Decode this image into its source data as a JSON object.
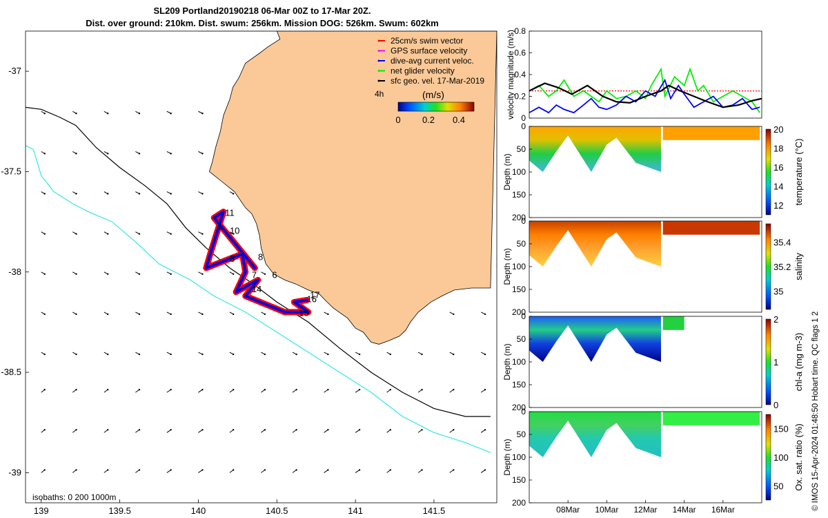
{
  "title": {
    "line1": "SL209 Portland20190218 06-Mar 00Z to 17-Mar 20Z.",
    "line2": "Dist. over ground: 210km. Dist. swum: 256km. Mission DOG: 526km. Swum: 602km"
  },
  "credit": "© IMOS 15-Apr-2024 01:48:50 Hobart time. QC flags 1  2",
  "colors": {
    "land": "#fbc997",
    "isobath200": "#000000",
    "isobath1000": "#33e6e6",
    "swim": "#ff0000",
    "gps": "#ff00ff",
    "diveavg": "#0000ff",
    "net": "#00ff00",
    "geo": "#000000"
  },
  "chart_data": [
    {
      "type": "scatter",
      "name": "map",
      "xlim": [
        138.9,
        141.9
      ],
      "ylim": [
        -39.15,
        -36.8
      ],
      "x_ticks": [
        "139",
        "139.5",
        "140",
        "140.5",
        "141",
        "141.5"
      ],
      "y_ticks": [
        "-37",
        "-37.5",
        "-38",
        "-38.5",
        "-39"
      ],
      "x_tick_values": [
        139,
        139.5,
        140,
        140.5,
        141,
        141.5
      ],
      "y_tick_values": [
        -37,
        -37.5,
        -38,
        -38.5,
        -39
      ],
      "legend": {
        "items": [
          "25cm/s swim vector",
          "GPS surface velocity",
          "dive-avg current veloc.",
          "net glider velocity",
          "sfc geo. vel. 17-Mar-2019"
        ],
        "interval": "4h",
        "cbar_label": "(m/s)",
        "cbar_ticks": [
          "0",
          "0.2",
          "0.4"
        ],
        "cbar_range": [
          0,
          0.5
        ]
      },
      "isobath_label": "isobaths: 0   200  1000m",
      "waypoint_labels": [
        {
          "text": "11",
          "lon": 140.17,
          "lat": -37.72
        },
        {
          "text": "10",
          "lon": 140.2,
          "lat": -37.81
        },
        {
          "text": "1",
          "lon": 140.12,
          "lat": -37.79
        },
        {
          "text": "8",
          "lon": 140.38,
          "lat": -37.94
        },
        {
          "text": "3",
          "lon": 140.2,
          "lat": -37.95
        },
        {
          "text": "7",
          "lon": 140.34,
          "lat": -38.03
        },
        {
          "text": "6",
          "lon": 140.47,
          "lat": -38.03
        },
        {
          "text": "14",
          "lon": 140.34,
          "lat": -38.1
        },
        {
          "text": "17",
          "lon": 140.71,
          "lat": -38.13
        },
        {
          "text": "16",
          "lon": 140.69,
          "lat": -38.15
        },
        {
          "text": "15",
          "lon": 140.64,
          "lat": -38.22
        }
      ],
      "coastline": [
        [
          140.0,
          -36.8
        ],
        [
          140.5,
          -36.8
        ],
        [
          140.52,
          -36.84
        ],
        [
          140.44,
          -36.88
        ],
        [
          140.39,
          -36.91
        ],
        [
          140.3,
          -36.96
        ],
        [
          140.26,
          -37.03
        ],
        [
          140.22,
          -37.08
        ],
        [
          140.2,
          -37.14
        ],
        [
          140.16,
          -37.22
        ],
        [
          140.14,
          -37.3
        ],
        [
          140.11,
          -37.38
        ],
        [
          140.09,
          -37.45
        ],
        [
          140.07,
          -37.5
        ],
        [
          140.15,
          -37.55
        ],
        [
          140.23,
          -37.6
        ],
        [
          140.3,
          -37.68
        ],
        [
          140.34,
          -37.71
        ],
        [
          140.37,
          -37.76
        ],
        [
          140.39,
          -37.82
        ],
        [
          140.4,
          -37.88
        ],
        [
          140.43,
          -37.96
        ],
        [
          140.48,
          -38.01
        ],
        [
          140.55,
          -38.04
        ],
        [
          140.62,
          -38.06
        ],
        [
          140.7,
          -38.09
        ],
        [
          140.77,
          -38.11
        ],
        [
          140.82,
          -38.15
        ],
        [
          140.86,
          -38.18
        ],
        [
          140.95,
          -38.23
        ],
        [
          141.0,
          -38.28
        ],
        [
          141.05,
          -38.3
        ],
        [
          141.1,
          -38.35
        ],
        [
          141.15,
          -38.36
        ],
        [
          141.22,
          -38.34
        ],
        [
          141.28,
          -38.32
        ],
        [
          141.32,
          -38.29
        ],
        [
          141.35,
          -38.25
        ],
        [
          141.4,
          -38.2
        ],
        [
          141.48,
          -38.15
        ],
        [
          141.55,
          -38.12
        ],
        [
          141.63,
          -38.09
        ],
        [
          141.74,
          -38.08
        ],
        [
          141.86,
          -38.08
        ]
      ],
      "isobath_200": [
        [
          138.9,
          -37.18
        ],
        [
          139.0,
          -37.19
        ],
        [
          139.12,
          -37.23
        ],
        [
          139.22,
          -37.27
        ],
        [
          139.35,
          -37.38
        ],
        [
          139.5,
          -37.48
        ],
        [
          139.66,
          -37.57
        ],
        [
          139.8,
          -37.66
        ],
        [
          139.92,
          -37.78
        ],
        [
          140.05,
          -37.88
        ],
        [
          140.2,
          -37.98
        ],
        [
          140.35,
          -38.06
        ],
        [
          140.5,
          -38.15
        ],
        [
          140.7,
          -38.25
        ],
        [
          140.9,
          -38.38
        ],
        [
          141.1,
          -38.5
        ],
        [
          141.3,
          -38.6
        ],
        [
          141.5,
          -38.68
        ],
        [
          141.7,
          -38.72
        ],
        [
          141.86,
          -38.72
        ]
      ],
      "isobath_1000": [
        [
          138.9,
          -37.37
        ],
        [
          138.95,
          -37.39
        ],
        [
          139.0,
          -37.52
        ],
        [
          139.08,
          -37.6
        ],
        [
          139.2,
          -37.66
        ],
        [
          139.3,
          -37.7
        ],
        [
          139.45,
          -37.75
        ],
        [
          139.6,
          -37.85
        ],
        [
          139.75,
          -37.96
        ],
        [
          139.95,
          -38.04
        ],
        [
          140.1,
          -38.12
        ],
        [
          140.3,
          -38.2
        ],
        [
          140.5,
          -38.3
        ],
        [
          140.7,
          -38.4
        ],
        [
          140.9,
          -38.5
        ],
        [
          141.1,
          -38.6
        ],
        [
          141.3,
          -38.72
        ],
        [
          141.5,
          -38.8
        ],
        [
          141.7,
          -38.85
        ],
        [
          141.86,
          -38.9
        ]
      ],
      "track": [
        [
          140.36,
          -37.98
        ],
        [
          140.1,
          -37.73
        ],
        [
          140.16,
          -37.7
        ],
        [
          140.08,
          -37.9
        ],
        [
          140.05,
          -37.98
        ],
        [
          140.28,
          -37.91
        ],
        [
          140.3,
          -38.0
        ],
        [
          140.24,
          -38.1
        ],
        [
          140.38,
          -38.04
        ],
        [
          140.3,
          -38.12
        ],
        [
          140.55,
          -38.2
        ],
        [
          140.7,
          -38.2
        ],
        [
          140.61,
          -38.15
        ],
        [
          140.69,
          -38.14
        ]
      ]
    },
    {
      "type": "line",
      "name": "velocity",
      "ylabel": "velocity magnitude (m/s)",
      "ylim": [
        0,
        0.8
      ],
      "y_ticks": [
        "0",
        "0.2",
        "0.4",
        "0.6",
        "0.8"
      ],
      "y_tick_values": [
        0,
        0.2,
        0.4,
        0.6,
        0.8
      ],
      "xlim": [
        6.0,
        18.0
      ],
      "x_unit": "day of March 2019",
      "series": [
        {
          "color": "#ff0000",
          "style": "dotted",
          "x": [
            6.0,
            18.0
          ],
          "y": [
            0.25,
            0.25
          ]
        },
        {
          "color": "#00ee00",
          "x": [
            6.0,
            6.5,
            7.0,
            7.4,
            7.8,
            8.3,
            8.8,
            9.2,
            9.6,
            10.0,
            10.5,
            11.0,
            11.5,
            12.0,
            12.3,
            12.8,
            13.0,
            13.5,
            14.0,
            14.3,
            14.7,
            15.0,
            15.5,
            16.0,
            16.5,
            17.0,
            17.5,
            17.9
          ],
          "y": [
            0.25,
            0.3,
            0.2,
            0.25,
            0.35,
            0.2,
            0.25,
            0.2,
            0.15,
            0.25,
            0.18,
            0.2,
            0.25,
            0.18,
            0.3,
            0.45,
            0.2,
            0.38,
            0.3,
            0.45,
            0.25,
            0.3,
            0.15,
            0.2,
            0.25,
            0.2,
            0.15,
            0.05
          ]
        },
        {
          "color": "#0000ff",
          "x": [
            6.0,
            6.5,
            7.0,
            7.4,
            7.8,
            8.3,
            8.8,
            9.2,
            9.6,
            10.0,
            10.5,
            11.0,
            11.5,
            12.0,
            12.5,
            13.0,
            13.3,
            13.7,
            14.0,
            14.5,
            15.0,
            15.5,
            16.0,
            16.5,
            17.0,
            17.5,
            17.9
          ],
          "y": [
            0.05,
            0.1,
            0.05,
            0.12,
            0.08,
            0.05,
            0.12,
            0.18,
            0.1,
            0.08,
            0.12,
            0.2,
            0.15,
            0.25,
            0.2,
            0.35,
            0.18,
            0.3,
            0.22,
            0.1,
            0.15,
            0.2,
            0.1,
            0.12,
            0.18,
            0.08,
            0.1
          ]
        },
        {
          "color": "#000000",
          "x": [
            6.0,
            6.8,
            7.5,
            8.2,
            9.0,
            9.8,
            10.5,
            11.2,
            12.0,
            12.8,
            13.2,
            13.8,
            14.5,
            15.2,
            16.0,
            16.8,
            17.5,
            18.0
          ],
          "y": [
            0.25,
            0.32,
            0.28,
            0.22,
            0.3,
            0.2,
            0.15,
            0.14,
            0.2,
            0.25,
            0.3,
            0.25,
            0.2,
            0.15,
            0.1,
            0.12,
            0.16,
            0.18
          ]
        }
      ]
    },
    {
      "type": "heatmap",
      "name": "temperature",
      "ylabel": "Depth (m)",
      "cbar_label": "temperature (°C)",
      "cbar_ticks": [
        "12",
        "14",
        "16",
        "18",
        "20"
      ],
      "cbar_range": [
        11,
        20
      ],
      "y_ticks": [
        "0",
        "50",
        "100",
        "150",
        "200"
      ],
      "profile": [
        {
          "day": 6.0,
          "depth": 75
        },
        {
          "day": 6.7,
          "depth": 100
        },
        {
          "day": 7.4,
          "depth": 55
        },
        {
          "day": 8.0,
          "depth": 20
        },
        {
          "day": 9.2,
          "depth": 100
        },
        {
          "day": 10.0,
          "depth": 40
        },
        {
          "day": 10.5,
          "depth": 25
        },
        {
          "day": 11.5,
          "depth": 80
        },
        {
          "day": 12.8,
          "depth": 100
        }
      ],
      "later_depth": 30
    },
    {
      "type": "heatmap",
      "name": "salinity",
      "ylabel": "Depth (m)",
      "cbar_label": "salinity",
      "cbar_ticks": [
        "35",
        "35.2",
        "35.4"
      ],
      "cbar_range": [
        34.85,
        35.55
      ],
      "y_ticks": [
        "0",
        "50",
        "100",
        "150",
        "200"
      ],
      "profile": [
        {
          "day": 6.0,
          "depth": 75
        },
        {
          "day": 6.7,
          "depth": 100
        },
        {
          "day": 7.4,
          "depth": 55
        },
        {
          "day": 8.0,
          "depth": 20
        },
        {
          "day": 9.2,
          "depth": 100
        },
        {
          "day": 10.0,
          "depth": 40
        },
        {
          "day": 10.5,
          "depth": 25
        },
        {
          "day": 11.5,
          "depth": 80
        },
        {
          "day": 12.8,
          "depth": 100
        }
      ],
      "later_depth": 30
    },
    {
      "type": "heatmap",
      "name": "chl-a",
      "ylabel": "Depth (m)",
      "cbar_label": "chl-a (mg m-3)",
      "cbar_ticks": [
        "0",
        "1",
        "2"
      ],
      "cbar_range": [
        0,
        2
      ],
      "y_ticks": [
        "0",
        "50",
        "100",
        "150",
        "200"
      ],
      "profile": [
        {
          "day": 6.0,
          "depth": 75
        },
        {
          "day": 6.7,
          "depth": 100
        },
        {
          "day": 7.4,
          "depth": 55
        },
        {
          "day": 8.0,
          "depth": 20
        },
        {
          "day": 9.2,
          "depth": 100
        },
        {
          "day": 10.0,
          "depth": 40
        },
        {
          "day": 10.5,
          "depth": 25
        },
        {
          "day": 11.5,
          "depth": 80
        },
        {
          "day": 12.8,
          "depth": 100
        }
      ],
      "later_depth": 30,
      "later_end_day": 14.0
    },
    {
      "type": "heatmap",
      "name": "oxygen",
      "ylabel": "Depth (m)",
      "cbar_label": "Ox. sat. ratio (%)",
      "cbar_ticks": [
        "50",
        "100",
        "150"
      ],
      "cbar_range": [
        25,
        175
      ],
      "y_ticks": [
        "0",
        "50",
        "100",
        "150",
        "200"
      ],
      "x_ticks": [
        "08Mar",
        "10Mar",
        "12Mar",
        "14Mar",
        "16Mar"
      ],
      "x_tick_values": [
        8,
        10,
        12,
        14,
        16
      ],
      "profile": [
        {
          "day": 6.0,
          "depth": 75
        },
        {
          "day": 6.7,
          "depth": 100
        },
        {
          "day": 7.4,
          "depth": 55
        },
        {
          "day": 8.0,
          "depth": 20
        },
        {
          "day": 9.2,
          "depth": 100
        },
        {
          "day": 10.0,
          "depth": 40
        },
        {
          "day": 10.5,
          "depth": 25
        },
        {
          "day": 11.5,
          "depth": 80
        },
        {
          "day": 12.8,
          "depth": 100
        }
      ],
      "later_depth": 30
    }
  ]
}
